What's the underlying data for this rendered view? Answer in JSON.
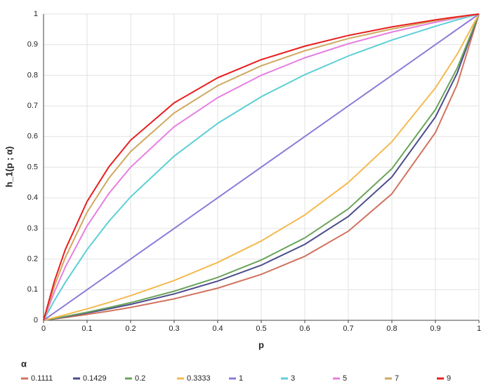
{
  "chart_data": {
    "type": "line",
    "x_label": "p",
    "y_label": "h_1(p ; α)",
    "legend_title": "α",
    "x": [
      0,
      0.025,
      0.05,
      0.1,
      0.15,
      0.2,
      0.3,
      0.4,
      0.5,
      0.6,
      0.7,
      0.8,
      0.9,
      0.95,
      1
    ],
    "series": [
      {
        "name": "0.1111",
        "color": "#d0735f",
        "values": [
          0,
          0.0045,
          0.0092,
          0.0192,
          0.0301,
          0.0421,
          0.0701,
          0.105,
          0.15,
          0.209,
          0.291,
          0.413,
          0.613,
          0.77,
          1
        ]
      },
      {
        "name": "0.1429",
        "color": "#4b4c8c",
        "values": [
          0,
          0.0056,
          0.0114,
          0.0239,
          0.0374,
          0.0521,
          0.0862,
          0.128,
          0.18,
          0.248,
          0.339,
          0.468,
          0.664,
          0.807,
          1
        ]
      },
      {
        "name": "0.2",
        "color": "#6aa35a",
        "values": [
          0,
          0.0062,
          0.0127,
          0.0265,
          0.0414,
          0.0577,
          0.095,
          0.14,
          0.197,
          0.269,
          0.364,
          0.495,
          0.688,
          0.823,
          1
        ]
      },
      {
        "name": "0.3333",
        "color": "#f5b94f",
        "values": [
          0,
          0.0089,
          0.0181,
          0.0374,
          0.0582,
          0.0805,
          0.13,
          0.189,
          0.259,
          0.344,
          0.45,
          0.583,
          0.759,
          0.869,
          1
        ]
      },
      {
        "name": "1",
        "color": "#8c7bd9",
        "values": [
          0,
          0.025,
          0.05,
          0.1,
          0.15,
          0.2,
          0.3,
          0.4,
          0.5,
          0.6,
          0.7,
          0.8,
          0.9,
          0.95,
          1
        ]
      },
      {
        "name": "3",
        "color": "#5ccfd6",
        "values": [
          0,
          0.0647,
          0.124,
          0.231,
          0.323,
          0.403,
          0.536,
          0.643,
          0.73,
          0.802,
          0.863,
          0.915,
          0.96,
          0.981,
          1
        ]
      },
      {
        "name": "5",
        "color": "#e67fe0",
        "values": [
          0,
          0.093,
          0.174,
          0.308,
          0.414,
          0.5,
          0.632,
          0.727,
          0.8,
          0.857,
          0.903,
          0.941,
          0.973,
          0.987,
          1
        ]
      },
      {
        "name": "7",
        "color": "#cfa95e",
        "values": [
          0,
          0.112,
          0.205,
          0.353,
          0.464,
          0.551,
          0.677,
          0.766,
          0.831,
          0.88,
          0.92,
          0.951,
          0.978,
          0.989,
          1
        ]
      },
      {
        "name": "9",
        "color": "#e81e1e",
        "values": [
          0,
          0.128,
          0.231,
          0.388,
          0.501,
          0.588,
          0.71,
          0.792,
          0.851,
          0.895,
          0.93,
          0.958,
          0.981,
          0.991,
          1
        ]
      }
    ],
    "xlim": [
      0,
      1
    ],
    "xticks": [
      0,
      0.1,
      0.2,
      0.3,
      0.4,
      0.5,
      0.6,
      0.7,
      0.8,
      0.9,
      1
    ],
    "ylim": [
      0,
      1
    ],
    "yticks": [
      0,
      0.1,
      0.2,
      0.3,
      0.4,
      0.5,
      0.6,
      0.7,
      0.8,
      0.9,
      1
    ],
    "grid": true,
    "legend": "bottom"
  }
}
